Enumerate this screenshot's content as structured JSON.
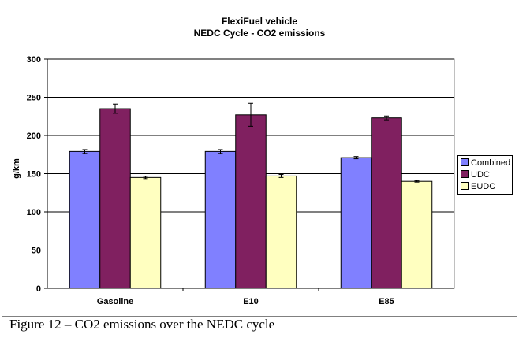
{
  "chart_data": {
    "type": "bar",
    "title": "FlexiFuel vehicle",
    "subtitle": "NEDC Cycle - CO2 emissions",
    "ylabel": "g/km",
    "xlabel": "",
    "ylim": [
      0,
      300
    ],
    "yticks": [
      0,
      50,
      100,
      150,
      200,
      250,
      300
    ],
    "categories": [
      "Gasoline",
      "E10",
      "E85"
    ],
    "series": [
      {
        "name": "Combined",
        "values": [
          179,
          179,
          171
        ],
        "errors": [
          2.5,
          2.5,
          1.5
        ],
        "color": "#8080ff"
      },
      {
        "name": "UDC",
        "values": [
          235,
          227,
          223
        ],
        "errors": [
          6,
          15,
          2.5
        ],
        "color": "#802060"
      },
      {
        "name": "EUDC",
        "values": [
          145,
          147,
          140
        ],
        "errors": [
          1.5,
          2,
          1
        ],
        "color": "#ffffc0"
      }
    ],
    "grid": true,
    "legend_position": "right"
  },
  "caption": "Figure 12 – CO2 emissions over the NEDC cycle"
}
